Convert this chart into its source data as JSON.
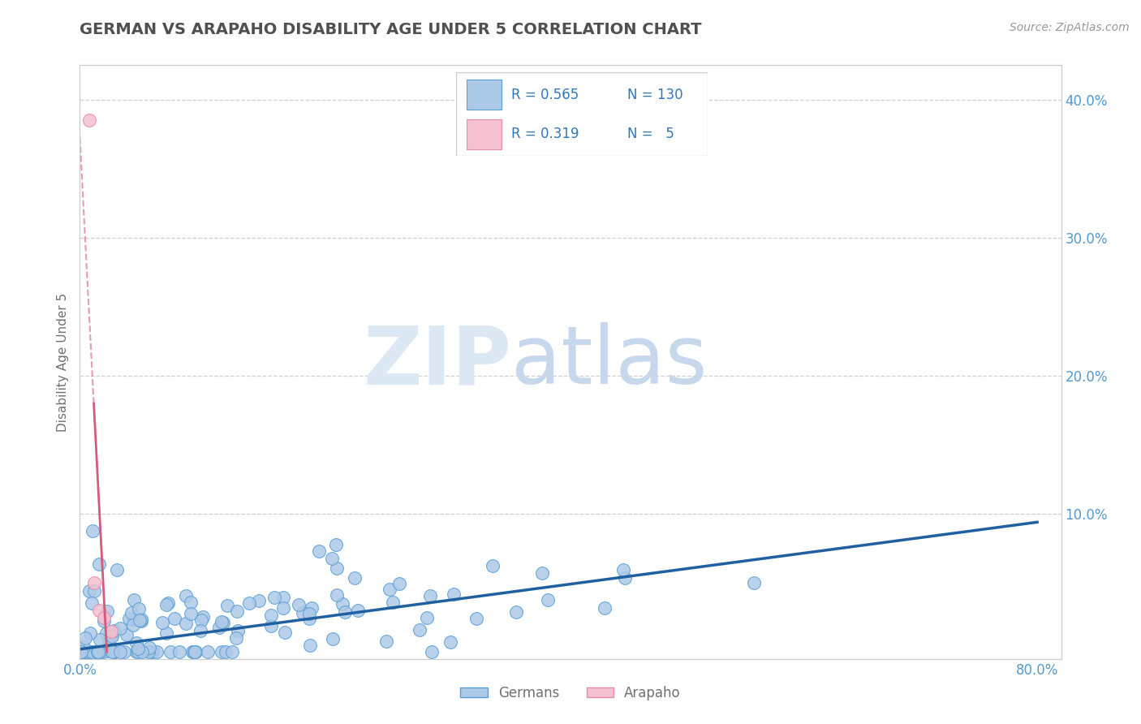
{
  "title": "GERMAN VS ARAPAHO DISABILITY AGE UNDER 5 CORRELATION CHART",
  "source_text": "Source: ZipAtlas.com",
  "ylabel": "Disability Age Under 5",
  "xlim": [
    0.0,
    0.82
  ],
  "ylim": [
    -0.005,
    0.425
  ],
  "xticks": [
    0.0,
    0.1,
    0.2,
    0.3,
    0.4,
    0.5,
    0.6,
    0.7,
    0.8
  ],
  "xticklabels": [
    "0.0%",
    "",
    "",
    "",
    "",
    "",
    "",
    "",
    "80.0%"
  ],
  "yticks": [
    0.0,
    0.1,
    0.2,
    0.3,
    0.4
  ],
  "yticklabels_left": [
    "",
    "10.0%",
    "20.0%",
    "30.0%",
    "40.0%"
  ],
  "yticklabels_right": [
    "",
    "10.0%",
    "20.0%",
    "30.0%",
    "40.0%"
  ],
  "german_R": 0.565,
  "german_N": 130,
  "arapaho_R": 0.319,
  "arapaho_N": 5,
  "german_color": "#adc9e8",
  "german_edge_color": "#5a9fd4",
  "german_line_color": "#2060a0",
  "arapaho_color": "#f5c0cf",
  "arapaho_edge_color": "#e88aaa",
  "arapaho_line_color": "#d45a7a",
  "background_color": "#ffffff",
  "title_color": "#505050",
  "axis_label_color": "#707070",
  "tick_label_color": "#5599cc",
  "grid_color": "#d0d0d0",
  "legend_text_color": "#3377bb",
  "watermark_zip_color": "#dce8f4",
  "watermark_atlas_color": "#c8d8ec"
}
